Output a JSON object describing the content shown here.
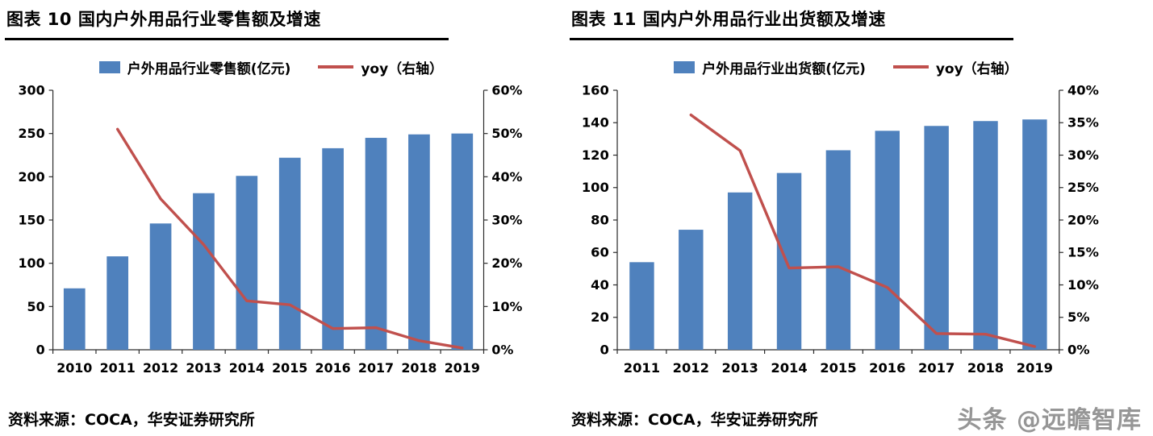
{
  "figures": [
    {
      "heading": "图表 10  国内户外用品行业零售额及增速",
      "source": "资料来源：COCA，华安证券研究所"
    },
    {
      "heading": "图表 11  国内户外用品行业出货额及增速",
      "source": "资料来源：COCA，华安证券研究所"
    }
  ],
  "watermark": "头条 @远瞻智库",
  "chart_data": [
    {
      "type": "bar",
      "title": "国内户外用品行业零售额及增速",
      "categories": [
        "2010",
        "2011",
        "2012",
        "2013",
        "2014",
        "2015",
        "2016",
        "2017",
        "2018",
        "2019"
      ],
      "series": [
        {
          "name": "户外用品行业零售额(亿元)",
          "type": "bar",
          "axis": "left",
          "color": "#4F81BD",
          "values": [
            71,
            108,
            146,
            181,
            201,
            222,
            233,
            245,
            249,
            250
          ]
        },
        {
          "name": "yoy（右轴）",
          "type": "line",
          "axis": "right",
          "color": "#C0504D",
          "values": [
            null,
            51.0,
            34.9,
            24.3,
            11.3,
            10.4,
            4.9,
            5.1,
            2.1,
            0.4
          ]
        }
      ],
      "left_axis": {
        "min": 0,
        "max": 300,
        "step": 50
      },
      "right_axis": {
        "min": 0,
        "max": 60,
        "step": 10,
        "suffix": "%"
      },
      "legend_position": "top",
      "grid": false
    },
    {
      "type": "bar",
      "title": "国内户外用品行业出货额及增速",
      "categories": [
        "2011",
        "2012",
        "2013",
        "2014",
        "2015",
        "2016",
        "2017",
        "2018",
        "2019"
      ],
      "series": [
        {
          "name": "户外用品行业出货额(亿元)",
          "type": "bar",
          "axis": "left",
          "color": "#4F81BD",
          "values": [
            54,
            74,
            97,
            109,
            123,
            135,
            138,
            141,
            142
          ]
        },
        {
          "name": "yoy（右轴）",
          "type": "line",
          "axis": "right",
          "color": "#C0504D",
          "values": [
            null,
            36.2,
            30.7,
            12.6,
            12.8,
            9.6,
            2.5,
            2.4,
            0.5
          ]
        }
      ],
      "left_axis": {
        "min": 0,
        "max": 160,
        "step": 20
      },
      "right_axis": {
        "min": 0,
        "max": 40,
        "step": 5,
        "suffix": "%"
      },
      "legend_position": "top",
      "grid": false
    }
  ]
}
